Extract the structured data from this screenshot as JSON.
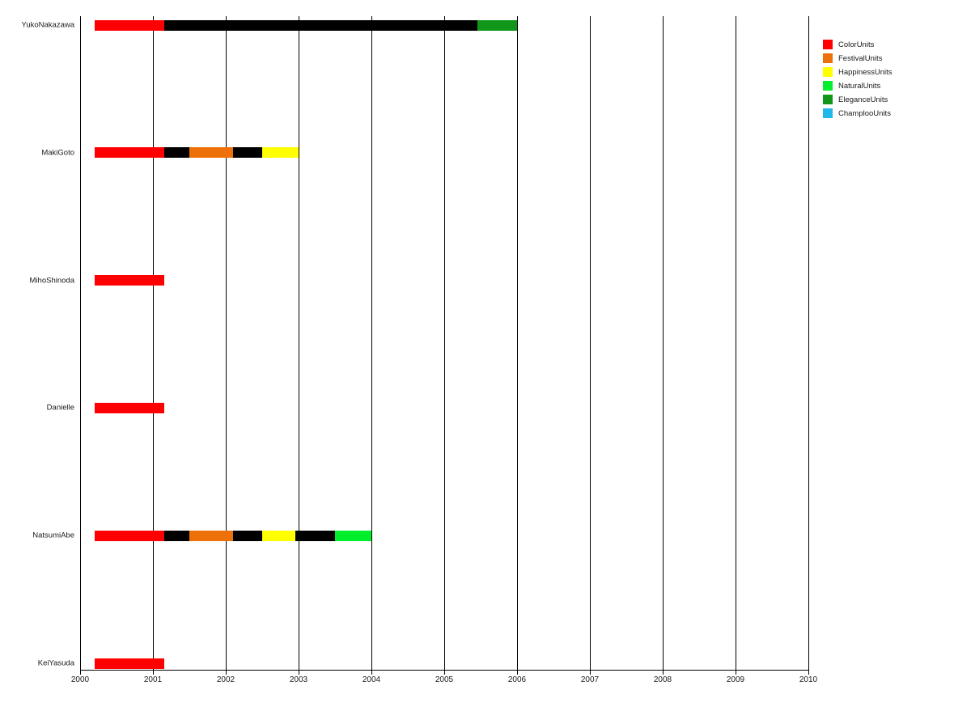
{
  "chart_data": {
    "type": "gantt",
    "title": "",
    "xlabel": "",
    "ylabel": "",
    "x_axis": {
      "min": 2000,
      "max": 2010,
      "ticks": [
        2000,
        2001,
        2002,
        2003,
        2004,
        2005,
        2006,
        2007,
        2008,
        2009,
        2010
      ]
    },
    "grid": "vertical-yearly-full-height",
    "legend_position": "top-right-outside",
    "legend": [
      {
        "label": "ColorUnits",
        "color": "#ff0000"
      },
      {
        "label": "FestivalUnits",
        "color": "#ee7008"
      },
      {
        "label": "HappinessUnits",
        "color": "#ffff00"
      },
      {
        "label": "NaturalUnits",
        "color": "#00ee2c"
      },
      {
        "label": "EleganceUnits",
        "color": "#109618"
      },
      {
        "label": "ChamplooUnits",
        "color": "#1fb9e9"
      }
    ],
    "rows": [
      {
        "label": "YukoNakazawa",
        "segments": [
          {
            "unit": "ColorUnits",
            "color": "#ff0000",
            "start": 2000.2,
            "end": 2001.15
          },
          {
            "unit": "",
            "color": "#000000",
            "start": 2001.15,
            "end": 2005.45
          },
          {
            "unit": "EleganceUnits",
            "color": "#109618",
            "start": 2005.45,
            "end": 2006.0
          }
        ]
      },
      {
        "label": "MakiGoto",
        "segments": [
          {
            "unit": "ColorUnits",
            "color": "#ff0000",
            "start": 2000.2,
            "end": 2001.15
          },
          {
            "unit": "",
            "color": "#000000",
            "start": 2001.15,
            "end": 2001.5
          },
          {
            "unit": "FestivalUnits",
            "color": "#ee7008",
            "start": 2001.5,
            "end": 2002.1
          },
          {
            "unit": "",
            "color": "#000000",
            "start": 2002.1,
            "end": 2002.5
          },
          {
            "unit": "HappinessUnits",
            "color": "#ffff00",
            "start": 2002.5,
            "end": 2003.0
          }
        ]
      },
      {
        "label": "MihoShinoda",
        "segments": [
          {
            "unit": "ColorUnits",
            "color": "#ff0000",
            "start": 2000.2,
            "end": 2001.15
          }
        ]
      },
      {
        "label": "Danielle",
        "segments": [
          {
            "unit": "ColorUnits",
            "color": "#ff0000",
            "start": 2000.2,
            "end": 2001.15
          }
        ]
      },
      {
        "label": "NatsumiAbe",
        "segments": [
          {
            "unit": "ColorUnits",
            "color": "#ff0000",
            "start": 2000.2,
            "end": 2001.15
          },
          {
            "unit": "",
            "color": "#000000",
            "start": 2001.15,
            "end": 2001.5
          },
          {
            "unit": "FestivalUnits",
            "color": "#ee7008",
            "start": 2001.5,
            "end": 2002.1
          },
          {
            "unit": "",
            "color": "#000000",
            "start": 2002.1,
            "end": 2002.5
          },
          {
            "unit": "HappinessUnits",
            "color": "#ffff00",
            "start": 2002.5,
            "end": 2002.95
          },
          {
            "unit": "",
            "color": "#000000",
            "start": 2002.95,
            "end": 2003.5
          },
          {
            "unit": "NaturalUnits",
            "color": "#00ee2c",
            "start": 2003.5,
            "end": 2004.0
          }
        ]
      },
      {
        "label": "KeiYasuda",
        "segments": [
          {
            "unit": "ColorUnits",
            "color": "#ff0000",
            "start": 2000.2,
            "end": 2001.15
          }
        ]
      }
    ]
  }
}
